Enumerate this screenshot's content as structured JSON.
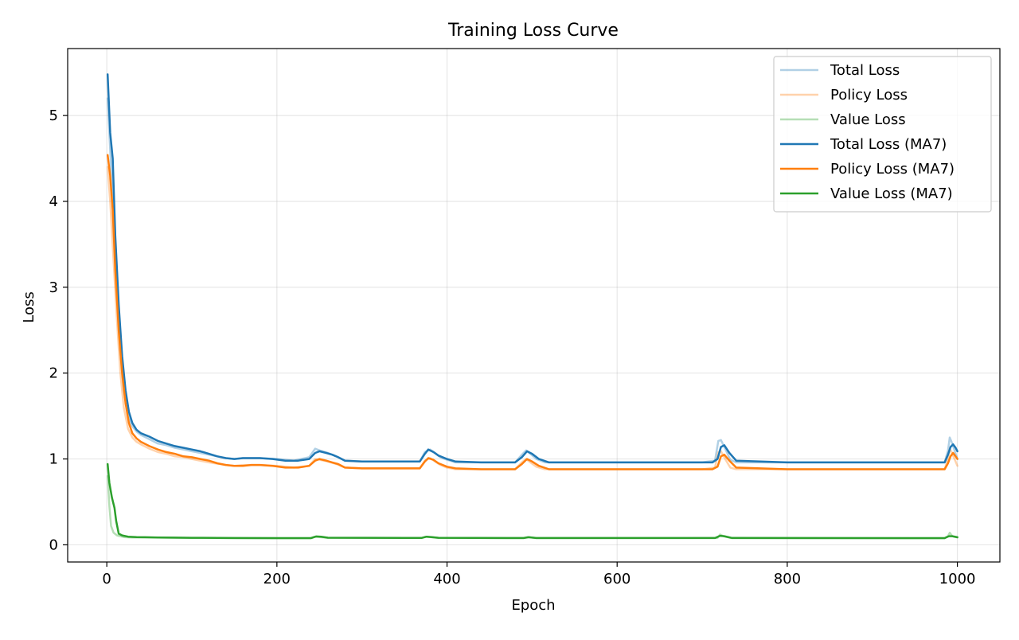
{
  "chart_data": {
    "type": "line",
    "title": "Training Loss Curve",
    "xlabel": "Epoch",
    "ylabel": "Loss",
    "xlim": [
      -46,
      1050
    ],
    "ylim": [
      -0.2,
      5.78
    ],
    "xticks": [
      0,
      200,
      400,
      600,
      800,
      1000
    ],
    "yticks": [
      0,
      1,
      2,
      3,
      4,
      5
    ],
    "grid": true,
    "legend_position": "top-right",
    "series": [
      {
        "name": "Total Loss",
        "color": "#1f77b4",
        "alpha": 0.35,
        "width": 2.5,
        "x": [
          1,
          4,
          8,
          12,
          16,
          20,
          25,
          30,
          35,
          40,
          50,
          60,
          70,
          80,
          90,
          100,
          120,
          140,
          150,
          160,
          180,
          200,
          220,
          238,
          245,
          250,
          260,
          270,
          280,
          300,
          340,
          368,
          374,
          380,
          386,
          392,
          400,
          410,
          440,
          480,
          488,
          493,
          498,
          505,
          515,
          530,
          600,
          700,
          715,
          719,
          722,
          727,
          733,
          740,
          800,
          900,
          985,
          989,
          991,
          994,
          997,
          1000
        ],
        "y": [
          5.2,
          4.6,
          3.7,
          2.9,
          2.25,
          1.8,
          1.5,
          1.38,
          1.32,
          1.28,
          1.23,
          1.18,
          1.16,
          1.13,
          1.11,
          1.09,
          1.05,
          1.01,
          1.0,
          1.01,
          1.01,
          1.0,
          0.98,
          1.02,
          1.12,
          1.1,
          1.07,
          1.03,
          0.98,
          0.97,
          0.97,
          0.97,
          1.08,
          1.11,
          1.07,
          1.02,
          0.99,
          0.96,
          0.96,
          0.96,
          1.05,
          1.1,
          1.06,
          1.0,
          0.96,
          0.96,
          0.96,
          0.96,
          0.98,
          1.21,
          1.22,
          1.12,
          0.99,
          0.96,
          0.96,
          0.96,
          0.96,
          1.1,
          1.25,
          1.18,
          1.09,
          1.0
        ]
      },
      {
        "name": "Policy Loss",
        "color": "#ff7f0e",
        "alpha": 0.35,
        "width": 2.5,
        "x": [
          1,
          4,
          8,
          12,
          16,
          20,
          25,
          30,
          35,
          40,
          50,
          60,
          70,
          80,
          90,
          100,
          120,
          140,
          150,
          160,
          180,
          200,
          220,
          238,
          245,
          250,
          260,
          270,
          280,
          300,
          340,
          368,
          374,
          380,
          386,
          392,
          400,
          410,
          440,
          480,
          488,
          493,
          498,
          505,
          515,
          530,
          600,
          700,
          715,
          719,
          722,
          727,
          733,
          740,
          800,
          900,
          985,
          989,
          991,
          994,
          997,
          1000
        ],
        "y": [
          4.4,
          4.0,
          3.3,
          2.6,
          2.0,
          1.6,
          1.35,
          1.25,
          1.2,
          1.17,
          1.12,
          1.08,
          1.06,
          1.03,
          1.02,
          1.0,
          0.96,
          0.93,
          0.92,
          0.93,
          0.93,
          0.92,
          0.9,
          0.92,
          1.0,
          0.99,
          0.97,
          0.94,
          0.9,
          0.89,
          0.89,
          0.89,
          0.98,
          1.01,
          0.97,
          0.93,
          0.9,
          0.88,
          0.88,
          0.88,
          0.96,
          1.0,
          0.96,
          0.91,
          0.88,
          0.88,
          0.88,
          0.88,
          0.9,
          1.08,
          1.09,
          1.0,
          0.9,
          0.88,
          0.88,
          0.88,
          0.88,
          1.0,
          1.12,
          1.06,
          0.99,
          0.92
        ]
      },
      {
        "name": "Value Loss",
        "color": "#2ca02c",
        "alpha": 0.35,
        "width": 2.5,
        "x": [
          1,
          3,
          5,
          8,
          12,
          16,
          20,
          30,
          40,
          60,
          80,
          100,
          150,
          200,
          240,
          245,
          250,
          260,
          370,
          375,
          380,
          390,
          490,
          495,
          505,
          718,
          721,
          725,
          735,
          985,
          989,
          991,
          994,
          1000
        ],
        "y": [
          0.8,
          0.45,
          0.22,
          0.14,
          0.11,
          0.1,
          0.09,
          0.085,
          0.085,
          0.085,
          0.082,
          0.08,
          0.078,
          0.077,
          0.077,
          0.095,
          0.09,
          0.082,
          0.08,
          0.095,
          0.09,
          0.08,
          0.078,
          0.09,
          0.078,
          0.08,
          0.12,
          0.1,
          0.077,
          0.077,
          0.1,
          0.14,
          0.1,
          0.085
        ]
      },
      {
        "name": "Total Loss (MA7)",
        "color": "#1f77b4",
        "alpha": 1,
        "width": 2.5,
        "x": [
          1,
          4,
          7,
          10,
          14,
          18,
          22,
          26,
          30,
          35,
          40,
          50,
          60,
          70,
          80,
          90,
          100,
          110,
          120,
          130,
          140,
          150,
          160,
          170,
          180,
          195,
          210,
          225,
          238,
          245,
          250,
          258,
          265,
          272,
          280,
          300,
          340,
          368,
          374,
          378,
          384,
          390,
          400,
          410,
          440,
          480,
          488,
          494,
          500,
          508,
          520,
          600,
          700,
          712,
          718,
          722,
          726,
          732,
          740,
          800,
          900,
          985,
          989,
          992,
          995,
          998,
          1000
        ],
        "y": [
          5.48,
          4.8,
          4.5,
          3.6,
          2.8,
          2.2,
          1.8,
          1.55,
          1.42,
          1.34,
          1.3,
          1.26,
          1.21,
          1.18,
          1.15,
          1.13,
          1.11,
          1.09,
          1.06,
          1.03,
          1.01,
          1.0,
          1.01,
          1.01,
          1.01,
          1.0,
          0.98,
          0.98,
          1.0,
          1.07,
          1.09,
          1.07,
          1.05,
          1.02,
          0.98,
          0.97,
          0.97,
          0.97,
          1.06,
          1.11,
          1.08,
          1.04,
          1.0,
          0.97,
          0.96,
          0.96,
          1.02,
          1.09,
          1.06,
          1.0,
          0.96,
          0.96,
          0.96,
          0.96,
          1.0,
          1.14,
          1.16,
          1.07,
          0.98,
          0.96,
          0.96,
          0.96,
          1.05,
          1.14,
          1.17,
          1.13,
          1.09
        ]
      },
      {
        "name": "Policy Loss (MA7)",
        "color": "#ff7f0e",
        "alpha": 1,
        "width": 2.5,
        "x": [
          1,
          4,
          7,
          10,
          14,
          18,
          22,
          26,
          30,
          35,
          40,
          50,
          60,
          70,
          80,
          90,
          100,
          110,
          120,
          130,
          140,
          150,
          160,
          170,
          180,
          195,
          210,
          225,
          238,
          245,
          250,
          258,
          265,
          272,
          280,
          300,
          340,
          368,
          374,
          378,
          384,
          390,
          400,
          410,
          440,
          480,
          488,
          494,
          500,
          508,
          520,
          600,
          700,
          712,
          718,
          722,
          726,
          732,
          740,
          800,
          900,
          985,
          989,
          992,
          995,
          998,
          1000
        ],
        "y": [
          4.54,
          4.3,
          3.9,
          3.2,
          2.5,
          2.0,
          1.65,
          1.42,
          1.3,
          1.24,
          1.2,
          1.15,
          1.11,
          1.08,
          1.06,
          1.03,
          1.02,
          1.0,
          0.98,
          0.95,
          0.93,
          0.92,
          0.92,
          0.93,
          0.93,
          0.92,
          0.9,
          0.9,
          0.92,
          0.98,
          1.0,
          0.98,
          0.96,
          0.94,
          0.9,
          0.89,
          0.89,
          0.89,
          0.97,
          1.01,
          0.99,
          0.95,
          0.91,
          0.89,
          0.88,
          0.88,
          0.94,
          1.0,
          0.97,
          0.92,
          0.88,
          0.88,
          0.88,
          0.88,
          0.91,
          1.03,
          1.05,
          0.98,
          0.9,
          0.88,
          0.88,
          0.88,
          0.95,
          1.03,
          1.07,
          1.03,
          1.0
        ]
      },
      {
        "name": "Value Loss (MA7)",
        "color": "#2ca02c",
        "alpha": 1,
        "width": 2.5,
        "x": [
          1,
          3,
          6,
          9,
          11,
          14,
          18,
          25,
          35,
          45,
          60,
          80,
          100,
          150,
          200,
          240,
          246,
          252,
          260,
          370,
          376,
          382,
          390,
          490,
          496,
          505,
          715,
          721,
          726,
          735,
          985,
          990,
          994,
          1000
        ],
        "y": [
          0.94,
          0.72,
          0.55,
          0.43,
          0.28,
          0.13,
          0.11,
          0.095,
          0.09,
          0.088,
          0.086,
          0.084,
          0.082,
          0.079,
          0.078,
          0.078,
          0.098,
          0.094,
          0.083,
          0.08,
          0.095,
          0.09,
          0.082,
          0.079,
          0.088,
          0.079,
          0.079,
          0.105,
          0.1,
          0.08,
          0.078,
          0.1,
          0.1,
          0.088
        ]
      }
    ]
  }
}
